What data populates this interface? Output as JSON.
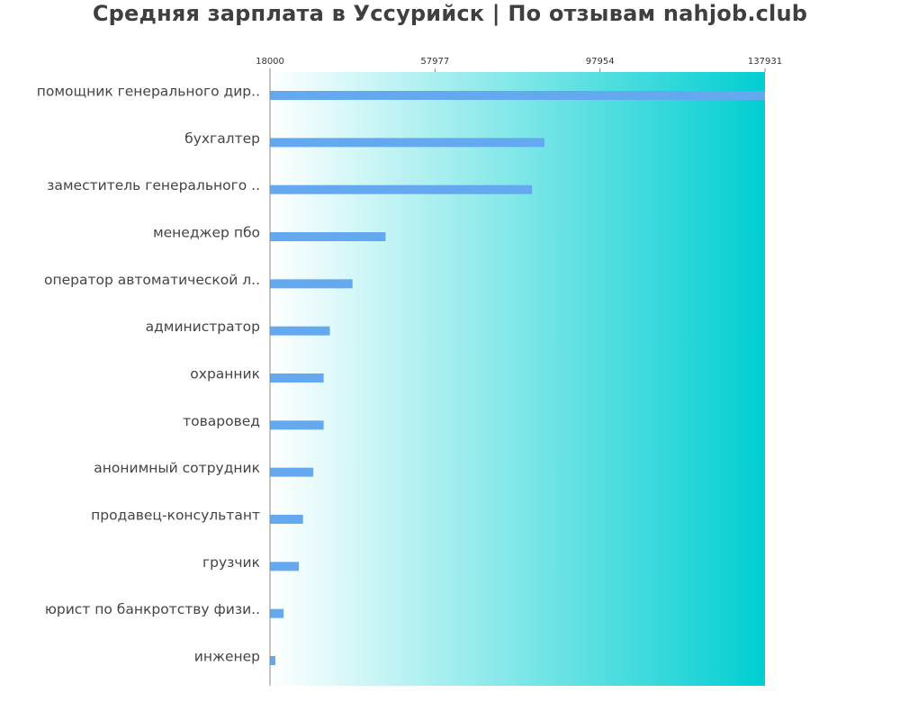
{
  "chart_data": {
    "type": "bar",
    "orientation": "horizontal",
    "title": "Средняя зарплата в Уссурийск | По отзывам nahjob.club",
    "xlabel": "",
    "ylabel": "",
    "xlim": [
      18000,
      137931
    ],
    "x_ticks": [
      18000,
      57977,
      97954,
      137931
    ],
    "x_tick_labels": [
      "18000",
      "57977",
      "97954",
      "137931"
    ],
    "categories": [
      "помощник генерального дир..",
      "бухгалтер",
      "заместитель генерального ..",
      "менеджер пбо",
      "оператор автоматической л..",
      "администратор",
      "охранник",
      "товаровед",
      "анонимный сотрудник",
      "продавец-консультант",
      "грузчик",
      "юрист по банкротству физи..",
      "инженер"
    ],
    "values": [
      137931,
      84500,
      81500,
      46000,
      38000,
      32500,
      31000,
      31000,
      28500,
      26000,
      25000,
      21300,
      19300
    ],
    "grid": false,
    "legend": "none",
    "colors": {
      "bar": "#64a8f0",
      "background_gradient_start": "#ffffff",
      "background_gradient_end": "#00ced1",
      "axis": "#888888",
      "title": "#3f3f3f",
      "label": "#444444"
    }
  }
}
